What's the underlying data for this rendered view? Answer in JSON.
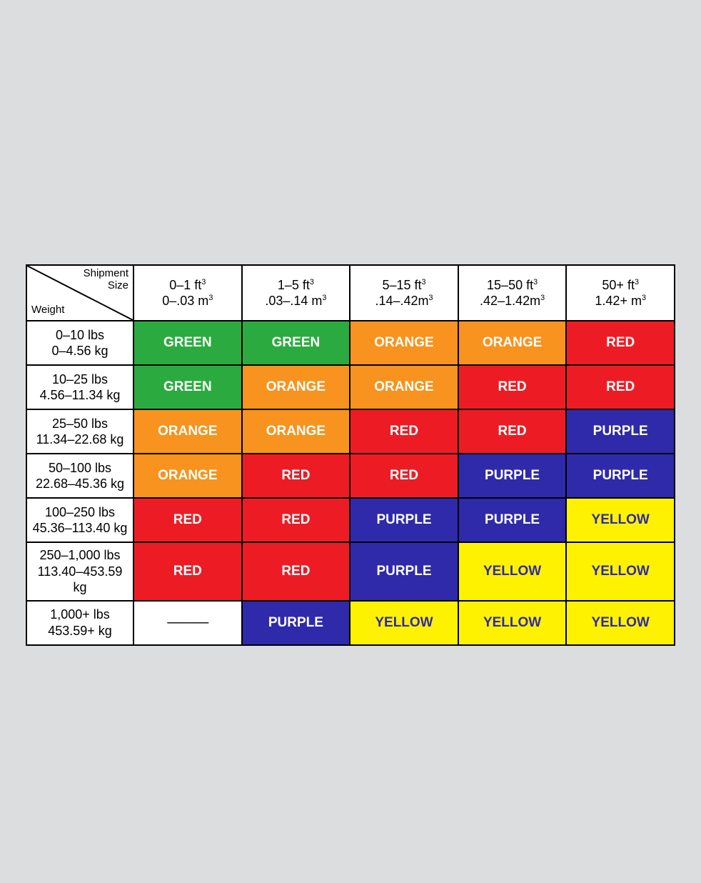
{
  "table": {
    "type": "heatmap-table",
    "background_color": "#dcdddf",
    "border_color": "#000000",
    "text_color_default": "#000000",
    "font_family": "Arial",
    "header_fontsize": 18,
    "cell_fontsize": 19,
    "cell_fontweight": "bold",
    "corner": {
      "top_label": "Shipment\nSize",
      "bottom_label": "Weight"
    },
    "columns": [
      {
        "line1": "0–1 ft³",
        "line2": "0–.03 m³"
      },
      {
        "line1": "1–5 ft³",
        "line2": ".03–.14 m³"
      },
      {
        "line1": "5–15 ft³",
        "line2": ".14–.42m³"
      },
      {
        "line1": "15–50 ft³",
        "line2": ".42–1.42m³"
      },
      {
        "line1": "50+ ft³",
        "line2": "1.42+ m³"
      }
    ],
    "rows": [
      {
        "line1": "0–10 lbs",
        "line2": "0–4.56 kg"
      },
      {
        "line1": "10–25 lbs",
        "line2": "4.56–11.34 kg"
      },
      {
        "line1": "25–50 lbs",
        "line2": "11.34–22.68 kg"
      },
      {
        "line1": "50–100 lbs",
        "line2": "22.68–45.36 kg"
      },
      {
        "line1": "100–250 lbs",
        "line2": "45.36–113.40 kg"
      },
      {
        "line1": "250–1,000 lbs",
        "line2": "113.40–453.59 kg"
      },
      {
        "line1": "1,000+ lbs",
        "line2": "453.59+ kg"
      }
    ],
    "palette": {
      "GREEN": {
        "bg": "#2bab3f",
        "fg": "#ffffff"
      },
      "ORANGE": {
        "bg": "#f7931e",
        "fg": "#ffffff"
      },
      "RED": {
        "bg": "#ed1c24",
        "fg": "#ffffff"
      },
      "PURPLE": {
        "bg": "#2e2aaa",
        "fg": "#ffffff"
      },
      "YELLOW": {
        "bg": "#fff200",
        "fg": "#2e2aaa"
      },
      "NONE": {
        "bg": "#ffffff",
        "fg": "#000000"
      }
    },
    "cells": [
      [
        "GREEN",
        "GREEN",
        "ORANGE",
        "ORANGE",
        "RED"
      ],
      [
        "GREEN",
        "ORANGE",
        "ORANGE",
        "RED",
        "RED"
      ],
      [
        "ORANGE",
        "ORANGE",
        "RED",
        "RED",
        "PURPLE"
      ],
      [
        "ORANGE",
        "RED",
        "RED",
        "PURPLE",
        "PURPLE"
      ],
      [
        "RED",
        "RED",
        "PURPLE",
        "PURPLE",
        "YELLOW"
      ],
      [
        "RED",
        "RED",
        "PURPLE",
        "YELLOW",
        "YELLOW"
      ],
      [
        "NONE",
        "PURPLE",
        "YELLOW",
        "YELLOW",
        "YELLOW"
      ]
    ],
    "none_label": "———"
  }
}
